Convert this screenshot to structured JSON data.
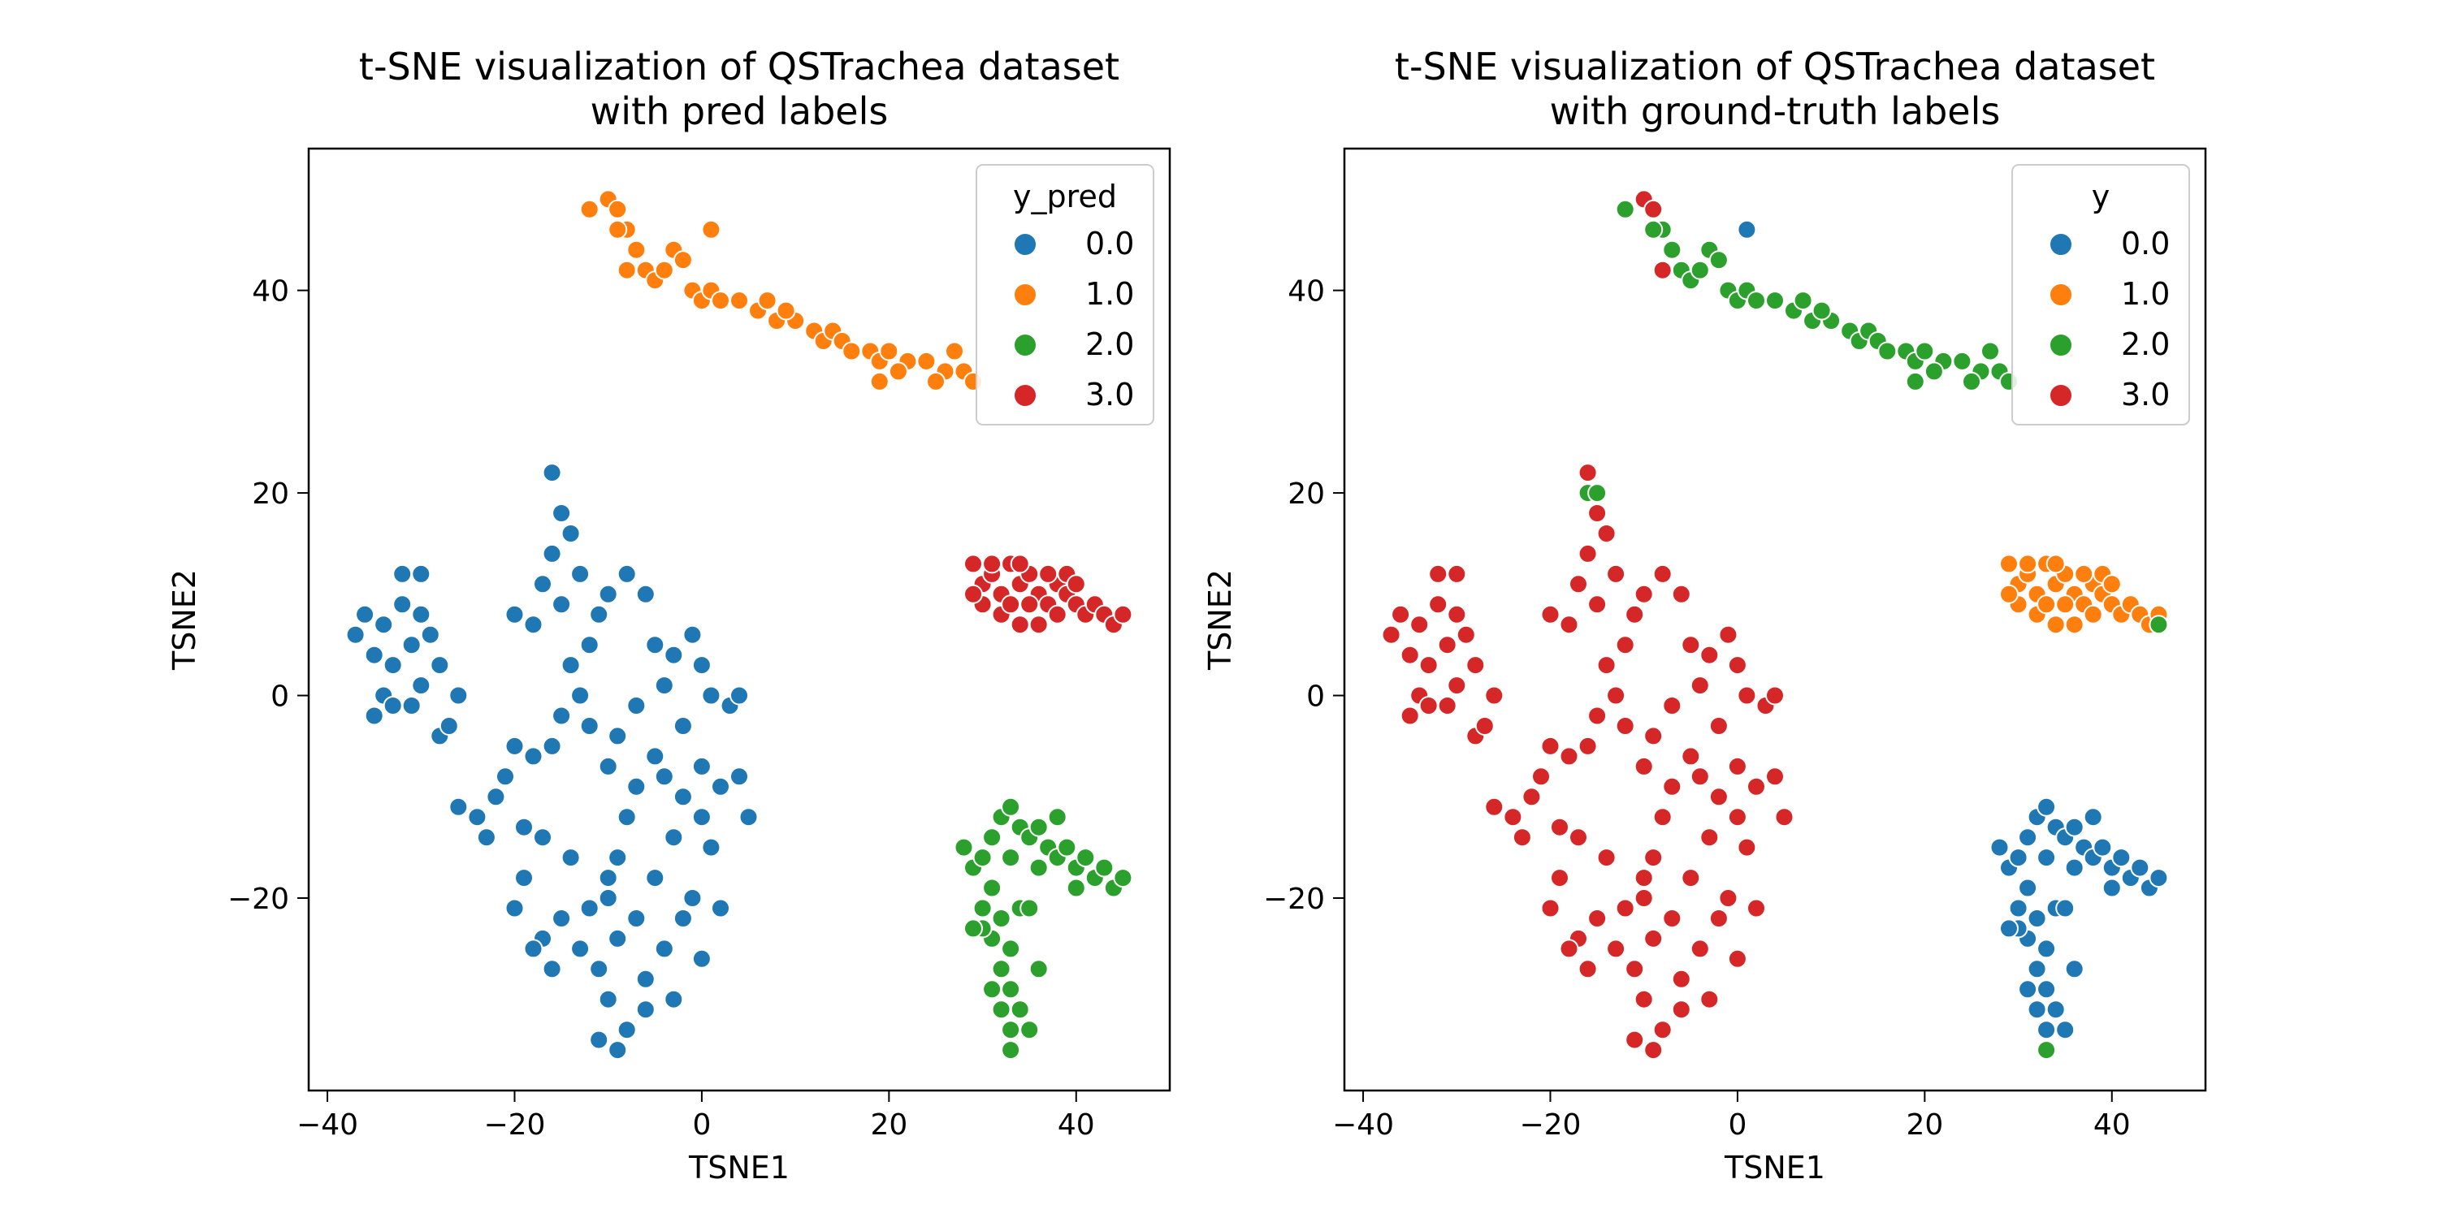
{
  "chart_data": [
    {
      "type": "scatter",
      "title": "t-SNE visualization of QSTrachea dataset\nwith pred labels",
      "title_lines": [
        "t-SNE visualization of QSTrachea dataset",
        "with pred labels"
      ],
      "xlabel": "TSNE1",
      "ylabel": "TSNE2",
      "xlim": [
        -42,
        50
      ],
      "ylim": [
        -39,
        54
      ],
      "xticks": [
        -40,
        -20,
        0,
        20,
        40
      ],
      "xtick_labels": [
        "−40",
        "−20",
        "0",
        "20",
        "40"
      ],
      "yticks": [
        -20,
        0,
        20,
        40
      ],
      "ytick_labels": [
        "−20",
        "0",
        "20",
        "40"
      ],
      "grid": false,
      "legend_position": "top-right",
      "legend_title": "y_pred",
      "categories": [
        {
          "label": "0.0",
          "color": "#1f77b4"
        },
        {
          "label": "1.0",
          "color": "#ff7f0e"
        },
        {
          "label": "2.0",
          "color": "#2ca02c"
        },
        {
          "label": "3.0",
          "color": "#d62728"
        }
      ],
      "series": [
        {
          "label": "0.0",
          "cluster": "A",
          "points": [
            [
              -37,
              6
            ],
            [
              -36,
              8
            ],
            [
              -35,
              4
            ],
            [
              -34,
              7
            ],
            [
              -33,
              3
            ],
            [
              -32,
              9
            ],
            [
              -31,
              5
            ],
            [
              -30,
              1
            ],
            [
              -29,
              6
            ],
            [
              -28,
              3
            ],
            [
              -32,
              12
            ],
            [
              -30,
              12
            ],
            [
              -34,
              0
            ],
            [
              -35,
              -2
            ],
            [
              -33,
              -1
            ],
            [
              -31,
              -1
            ],
            [
              -28,
              -4
            ],
            [
              -27,
              -3
            ],
            [
              -26,
              0
            ],
            [
              -30,
              8
            ],
            [
              -16,
              22
            ],
            [
              -15,
              18
            ],
            [
              -14,
              16
            ],
            [
              -16,
              14
            ],
            [
              -13,
              12
            ],
            [
              -17,
              11
            ],
            [
              -15,
              9
            ],
            [
              -11,
              8
            ],
            [
              -18,
              7
            ],
            [
              -20,
              8
            ],
            [
              -12,
              5
            ],
            [
              -10,
              10
            ],
            [
              -8,
              12
            ],
            [
              -6,
              10
            ],
            [
              -5,
              5
            ],
            [
              -3,
              4
            ],
            [
              -1,
              6
            ],
            [
              0,
              3
            ],
            [
              1,
              0
            ],
            [
              3,
              -1
            ],
            [
              4,
              0
            ],
            [
              -14,
              3
            ],
            [
              -13,
              0
            ],
            [
              -15,
              -2
            ],
            [
              -12,
              -3
            ],
            [
              -16,
              -5
            ],
            [
              -18,
              -6
            ],
            [
              -20,
              -5
            ],
            [
              -21,
              -8
            ],
            [
              -22,
              -10
            ],
            [
              -24,
              -12
            ],
            [
              -26,
              -11
            ],
            [
              -23,
              -14
            ],
            [
              -19,
              -13
            ],
            [
              -17,
              -14
            ],
            [
              -14,
              -16
            ],
            [
              -19,
              -18
            ],
            [
              -20,
              -21
            ],
            [
              -17,
              -24
            ],
            [
              -15,
              -22
            ],
            [
              -16,
              -27
            ],
            [
              -18,
              -25
            ],
            [
              -12,
              -21
            ],
            [
              -10,
              -20
            ],
            [
              -9,
              -16
            ],
            [
              -8,
              -12
            ],
            [
              -7,
              -9
            ],
            [
              -5,
              -6
            ],
            [
              -4,
              -8
            ],
            [
              -2,
              -10
            ],
            [
              0,
              -7
            ],
            [
              2,
              -9
            ],
            [
              4,
              -8
            ],
            [
              5,
              -12
            ],
            [
              1,
              -15
            ],
            [
              0,
              -12
            ],
            [
              -3,
              -14
            ],
            [
              -5,
              -18
            ],
            [
              -7,
              -22
            ],
            [
              -9,
              -24
            ],
            [
              -11,
              -27
            ],
            [
              -10,
              -30
            ],
            [
              -8,
              -33
            ],
            [
              -11,
              -34
            ],
            [
              -9,
              -35
            ],
            [
              -6,
              -28
            ],
            [
              -4,
              -25
            ],
            [
              -2,
              -22
            ],
            [
              -1,
              -20
            ],
            [
              0,
              -26
            ],
            [
              2,
              -21
            ],
            [
              -3,
              -30
            ],
            [
              -6,
              -31
            ],
            [
              -10,
              -18
            ],
            [
              -13,
              -25
            ],
            [
              -2,
              -3
            ],
            [
              -4,
              1
            ],
            [
              -7,
              -1
            ],
            [
              -9,
              -4
            ],
            [
              -10,
              -7
            ]
          ]
        },
        {
          "label": "1.0",
          "cluster": "B",
          "points": [
            [
              -12,
              48
            ],
            [
              -10,
              49
            ],
            [
              -9,
              48
            ],
            [
              -8,
              46
            ],
            [
              -7,
              44
            ],
            [
              -6,
              42
            ],
            [
              -8,
              42
            ],
            [
              -9,
              46
            ],
            [
              -5,
              41
            ],
            [
              -4,
              42
            ],
            [
              -3,
              44
            ],
            [
              -1,
              40
            ],
            [
              0,
              39
            ],
            [
              1,
              40
            ],
            [
              2,
              39
            ],
            [
              4,
              39
            ],
            [
              6,
              38
            ],
            [
              8,
              37
            ],
            [
              10,
              37
            ],
            [
              12,
              36
            ],
            [
              13,
              35
            ],
            [
              14,
              36
            ],
            [
              15,
              35
            ],
            [
              16,
              34
            ],
            [
              18,
              34
            ],
            [
              19,
              33
            ],
            [
              20,
              34
            ],
            [
              22,
              33
            ],
            [
              24,
              33
            ],
            [
              26,
              32
            ],
            [
              28,
              32
            ],
            [
              29,
              31
            ],
            [
              27,
              34
            ],
            [
              25,
              31
            ],
            [
              21,
              32
            ],
            [
              19,
              31
            ],
            [
              9,
              38
            ],
            [
              7,
              39
            ],
            [
              1,
              46
            ],
            [
              -2,
              43
            ]
          ]
        },
        {
          "label": "2.0",
          "cluster": "D",
          "points": [
            [
              28,
              -15
            ],
            [
              29,
              -17
            ],
            [
              30,
              -16
            ],
            [
              31,
              -14
            ],
            [
              32,
              -12
            ],
            [
              33,
              -11
            ],
            [
              34,
              -13
            ],
            [
              35,
              -14
            ],
            [
              36,
              -13
            ],
            [
              37,
              -15
            ],
            [
              38,
              -16
            ],
            [
              39,
              -15
            ],
            [
              40,
              -17
            ],
            [
              41,
              -16
            ],
            [
              42,
              -18
            ],
            [
              43,
              -17
            ],
            [
              44,
              -19
            ],
            [
              45,
              -18
            ],
            [
              36,
              -17
            ],
            [
              33,
              -16
            ],
            [
              31,
              -19
            ],
            [
              30,
              -21
            ],
            [
              32,
              -22
            ],
            [
              33,
              -25
            ],
            [
              31,
              -24
            ],
            [
              30,
              -23
            ],
            [
              32,
              -27
            ],
            [
              33,
              -29
            ],
            [
              32,
              -31
            ],
            [
              34,
              -31
            ],
            [
              35,
              -33
            ],
            [
              33,
              -33
            ],
            [
              33,
              -35
            ],
            [
              34,
              -21
            ],
            [
              35,
              -21
            ],
            [
              38,
              -12
            ],
            [
              40,
              -19
            ],
            [
              29,
              -23
            ],
            [
              31,
              -29
            ],
            [
              36,
              -27
            ]
          ]
        },
        {
          "label": "3.0",
          "cluster": "C",
          "points": [
            [
              29,
              13
            ],
            [
              30,
              11
            ],
            [
              31,
              12
            ],
            [
              32,
              10
            ],
            [
              33,
              13
            ],
            [
              34,
              11
            ],
            [
              35,
              12
            ],
            [
              36,
              10
            ],
            [
              37,
              9
            ],
            [
              38,
              11
            ],
            [
              39,
              10
            ],
            [
              40,
              9
            ],
            [
              41,
              8
            ],
            [
              42,
              9
            ],
            [
              43,
              8
            ],
            [
              44,
              7
            ],
            [
              45,
              8
            ],
            [
              30,
              9
            ],
            [
              32,
              8
            ],
            [
              34,
              7
            ],
            [
              36,
              7
            ],
            [
              38,
              8
            ],
            [
              33,
              9
            ],
            [
              35,
              9
            ],
            [
              37,
              12
            ],
            [
              39,
              12
            ],
            [
              31,
              13
            ],
            [
              40,
              11
            ],
            [
              29,
              10
            ],
            [
              34,
              13
            ]
          ]
        }
      ]
    },
    {
      "type": "scatter",
      "title": "t-SNE visualization of QSTrachea dataset\nwith ground-truth labels",
      "title_lines": [
        "t-SNE visualization of QSTrachea dataset",
        "with ground-truth labels"
      ],
      "xlabel": "TSNE1",
      "ylabel": "TSNE2",
      "xlim": [
        -42,
        50
      ],
      "ylim": [
        -39,
        54
      ],
      "xticks": [
        -40,
        -20,
        0,
        20,
        40
      ],
      "xtick_labels": [
        "−40",
        "−20",
        "0",
        "20",
        "40"
      ],
      "yticks": [
        -20,
        0,
        20,
        40
      ],
      "ytick_labels": [
        "−20",
        "0",
        "20",
        "40"
      ],
      "grid": false,
      "legend_position": "top-right",
      "legend_title": "y",
      "categories": [
        {
          "label": "0.0",
          "color": "#1f77b4"
        },
        {
          "label": "1.0",
          "color": "#ff7f0e"
        },
        {
          "label": "2.0",
          "color": "#2ca02c"
        },
        {
          "label": "3.0",
          "color": "#d62728"
        }
      ],
      "cluster_labels": {
        "A": "3.0",
        "B": "2.0",
        "C": "1.0",
        "D": "0.0"
      },
      "exceptions": [
        {
          "x": 1,
          "y": 46,
          "label": "0.0"
        },
        {
          "x": -10,
          "y": 49,
          "label": "3.0"
        },
        {
          "x": -9,
          "y": 48,
          "label": "3.0"
        },
        {
          "x": -8,
          "y": 42,
          "label": "3.0"
        },
        {
          "x": -16,
          "y": 20,
          "label": "2.0"
        },
        {
          "x": -15,
          "y": 20,
          "label": "2.0"
        },
        {
          "x": 45,
          "y": 7,
          "label": "2.0"
        },
        {
          "x": 33,
          "y": -35,
          "label": "2.0"
        }
      ]
    }
  ]
}
